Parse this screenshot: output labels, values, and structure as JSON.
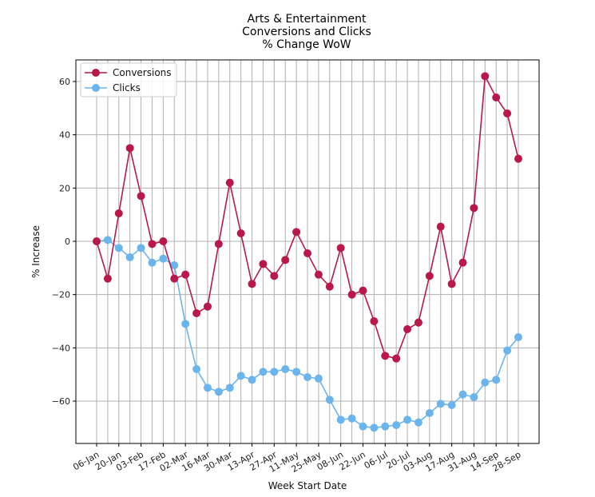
{
  "chart_data": {
    "type": "line",
    "title_lines": [
      "Arts & Entertainment",
      "Conversions and Clicks",
      "% Change WoW"
    ],
    "xlabel": "Week Start Date",
    "ylabel": "% Increase",
    "x_tick_labels": [
      "06-Jan",
      "20-Jan",
      "03-Feb",
      "17-Feb",
      "02-Mar",
      "16-Mar",
      "30-Mar",
      "13-Apr",
      "27-Apr",
      "11-May",
      "25-May",
      "08-Jun",
      "22-Jun",
      "06-Jul",
      "20-Jul",
      "03-Aug",
      "17-Aug",
      "31-Aug",
      "14-Sep",
      "28-Sep"
    ],
    "y_ticks": [
      60,
      40,
      20,
      0,
      -20,
      -40,
      -60
    ],
    "ylim": [
      -77,
      68
    ],
    "grid": true,
    "legend_position": "upper-left",
    "series": [
      {
        "name": "Conversions",
        "color": "#b8184a",
        "values": [
          0,
          -14,
          10.5,
          35,
          17,
          -1,
          0,
          -14,
          -12.5,
          -27,
          -24.5,
          -1,
          22,
          3,
          -16,
          -8.5,
          -13,
          -7,
          3.5,
          -4.5,
          -12.5,
          -17,
          -2.5,
          -20,
          -18.5,
          -30,
          -43,
          -44,
          -33,
          -30.5,
          -13,
          5.5,
          -16,
          -8,
          12.5,
          62,
          54,
          48,
          31
        ]
      },
      {
        "name": "Clicks",
        "color": "#6cb4ec",
        "values": [
          0,
          0.5,
          -2.5,
          -6,
          -2.5,
          -8,
          -6.5,
          -9,
          -31,
          -48,
          -55,
          -56.5,
          -55,
          -50.5,
          -52,
          -49,
          -49,
          -48,
          -49,
          -51,
          -51.5,
          -59.5,
          -67,
          -66.5,
          -69.5,
          -70,
          -69.5,
          -69,
          -67,
          -68,
          -64.5,
          -61,
          -61.5,
          -57.5,
          -58.5,
          -53,
          -52,
          -41,
          -36
        ]
      }
    ]
  }
}
